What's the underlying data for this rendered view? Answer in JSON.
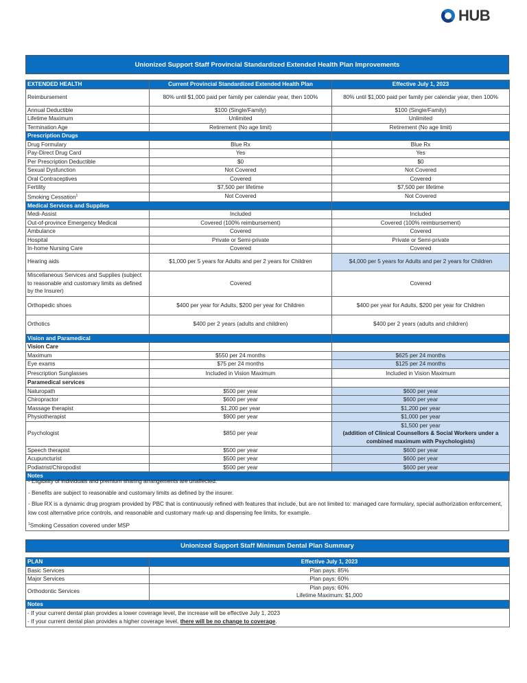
{
  "logo": {
    "text": "HUB"
  },
  "health": {
    "title": "Unionized Support Staff Provincial Standardized Extended Health Plan Improvements",
    "columns": [
      "EXTENDED HEALTH",
      "Current Provincial Standardized Extended Health Plan",
      "Effective July 1, 2023"
    ],
    "rows": [
      {
        "t": "item",
        "h": 25,
        "label": "Reimbursement",
        "cur": "80% until $1,000 paid per family per calendar year, then 100%",
        "eff": "80% until $1,000 paid per family per calendar year, then 100%"
      },
      {
        "t": "item",
        "label": "Annual Deductible",
        "cur": "$100 (Single/Family)",
        "eff": "$100 (Single/Family)"
      },
      {
        "t": "item",
        "label": "Lifetime Maximum",
        "cur": "Unlimited",
        "eff": "Unlimited"
      },
      {
        "t": "item",
        "label": "Termination Age",
        "cur": "Retirement (No age limit)",
        "eff": "Retirement (No age limit)"
      },
      {
        "t": "sec",
        "label": "Prescription Drugs"
      },
      {
        "t": "item",
        "label": "Drug Formulary",
        "cur": "Blue Rx",
        "eff": "Blue Rx"
      },
      {
        "t": "item",
        "label": "Pay-Direct Drug Card",
        "cur": "Yes",
        "eff": "Yes"
      },
      {
        "t": "item",
        "label": "Per Prescription Deductible",
        "cur": "$0",
        "eff": "$0"
      },
      {
        "t": "item",
        "label": "Sexual Dysfunction",
        "cur": "Not Covered",
        "eff": "Not Covered"
      },
      {
        "t": "item",
        "label": "Oral Contraceptives",
        "cur": "Covered",
        "eff": "Covered"
      },
      {
        "t": "item",
        "label": "Fertility",
        "cur": "$7,500 per lifetime",
        "eff": "$7,500 per lifetime"
      },
      {
        "t": "item",
        "label": "Smoking Cessation",
        "sup": "1",
        "cur": "Not Covered",
        "eff": "Not Covered"
      },
      {
        "t": "sec",
        "label": "Medical Services and Supplies"
      },
      {
        "t": "item",
        "label": "Medi-Assist",
        "cur": "Included",
        "eff": "Included"
      },
      {
        "t": "item",
        "label": "Out-of-province Emergency Medical",
        "cur": "Covered (100% reimbursement)",
        "eff": "Covered (100% reimbursement)"
      },
      {
        "t": "item",
        "label": "Ambulance",
        "cur": "Covered",
        "eff": "Covered"
      },
      {
        "t": "item",
        "label": "Hospital",
        "cur": "Private or Semi-private",
        "eff": "Private or Semi-private"
      },
      {
        "t": "item",
        "label": "In-home Nursing Care",
        "cur": "Covered",
        "eff": "Covered"
      },
      {
        "t": "item",
        "h": 26,
        "label": "Hearing aids",
        "cur": "$1,000 per 5 years for Adults and per 2 years for Children",
        "eff": "$4,000 per 5 years for Adults and per 2 years for Children",
        "hl": true
      },
      {
        "t": "item",
        "h": 37,
        "label": "Miscellaneous Services and Supplies (subject to reasonable and customary limits as defined by the Insurer)",
        "cur": "Covered",
        "eff": "Covered"
      },
      {
        "t": "item",
        "h": 27,
        "label": "Orthopedic shoes",
        "cur": "$400 per year for Adults, $200 per year for Children",
        "eff": "$400 per year for Adults, $200 per year for Children"
      },
      {
        "t": "item",
        "h": 28,
        "label": "Orthotics",
        "cur": "$400 per 2 years (adults and children)",
        "eff": "$400 per 2 years (adults and children)"
      },
      {
        "t": "sec",
        "label": "Vision and Paramedical"
      },
      {
        "t": "sub",
        "label": "Vision Care"
      },
      {
        "t": "item",
        "label": "Maximum",
        "cur": "$550 per 24 months",
        "eff": "$625 per 24 months",
        "hl": true
      },
      {
        "t": "item",
        "h": 13,
        "label": "Eye exams",
        "cur": "$75 per 24 months",
        "eff": "$125 per 24 months",
        "hl": true
      },
      {
        "t": "item",
        "h": 14,
        "label": "Prescription Sunglasses",
        "cur": "Included in Vision Maximum",
        "eff": "Included in Vision Maximum"
      },
      {
        "t": "sub",
        "label": "Paramedical services"
      },
      {
        "t": "item",
        "label": "Naturopath",
        "cur": "$500 per year",
        "eff": "$600 per year",
        "hl": true
      },
      {
        "t": "item",
        "label": "Chiropractor",
        "cur": "$600 per year",
        "eff": "$600 per year",
        "hl": true
      },
      {
        "t": "item",
        "label": "Massage therapist",
        "cur": "$1,200 per year",
        "eff": "$1,200 per year",
        "hl": true
      },
      {
        "t": "item",
        "label": "Physiotherapist",
        "cur": "$900 per year",
        "eff": "$1,000 per year",
        "hl": true
      },
      {
        "t": "item",
        "h": 36,
        "label": "Psychologist",
        "cur": "$850 per year",
        "eff": "$1,500 per year",
        "eff2": "(addition of Clinical Counsellors & Social Workers under a combined maximum with Psychologists)",
        "hl": true
      },
      {
        "t": "item",
        "label": "Speech therapist",
        "cur": "$500 per year",
        "eff": "$600 per year",
        "hl": true
      },
      {
        "t": "item",
        "label": "Acupuncturist",
        "cur": "$500 per year",
        "eff": "$600 per year",
        "hl": true
      },
      {
        "t": "item",
        "label": "Podiatrist/Chiropodist",
        "cur": "$500 per year",
        "eff": "$600 per year",
        "hl": true
      },
      {
        "t": "secfull",
        "label": "Notes"
      }
    ],
    "notes": [
      "- Eligibility of individuals and premium sharing arrangements are unaffected.",
      "- Benefits are subject to reasonable and customary limits as defined by the insurer.",
      "- Blue RX is a dynamic drug program provided by PBC that is continuously refined with features that include, but are not limited to: managed care formulary, special authorization enforcement, low cost alternative price controls, and reasonable and customary mark-up and dispensing fee limits, for example."
    ],
    "footnote_mark": "1",
    "footnote": "Smoking Cessation covered under MSP"
  },
  "dental": {
    "title": "Unionized Support Staff Minimum Dental Plan Summary",
    "columns": [
      "PLAN",
      "Effective July 1, 2023"
    ],
    "rows": [
      {
        "label": "Basic Services",
        "val": "Plan pays: 85%"
      },
      {
        "label": "Major Services",
        "val": "Plan pays: 60%"
      },
      {
        "label": "Orthodontic Services",
        "val": "Plan pays: 60%",
        "val2": "Lifetime Maximum: $1,000"
      }
    ],
    "notes_label": "Notes",
    "note1": "- If your current dental plan provides a lower coverage level, the increase will be effective July 1, 2023",
    "note2_prefix": "- If your current dental plan provides a higher coverage level, ",
    "note2_emph": "there will be no change to coverage",
    "note2_suffix": "."
  }
}
